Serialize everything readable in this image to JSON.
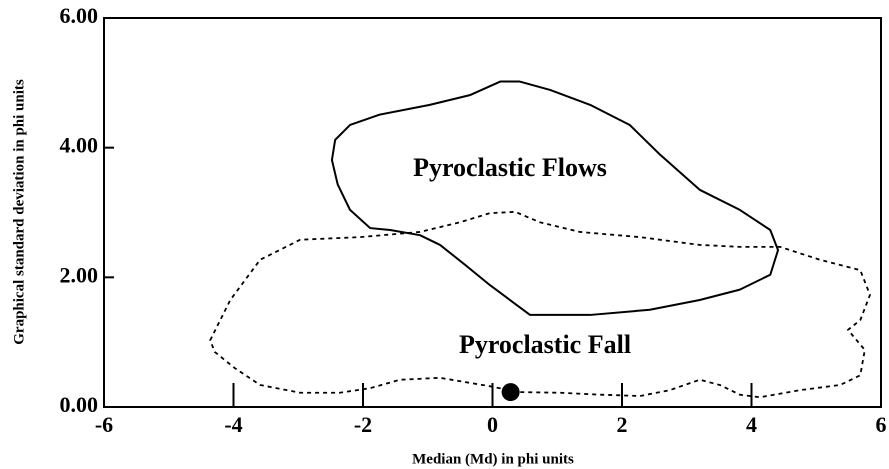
{
  "chart_data": {
    "type": "scatter",
    "xlabel": "Median (Md) in phi units",
    "ylabel": "Graphical standard deviation in phi units",
    "xlim": [
      -6,
      6
    ],
    "ylim": [
      0,
      6
    ],
    "xticks": [
      -6,
      -4,
      -2,
      0,
      2,
      4,
      6
    ],
    "yticks": [
      {
        "value": 0,
        "label": "0.00"
      },
      {
        "value": 2,
        "label": "2.00"
      },
      {
        "value": 4,
        "label": "4.00"
      },
      {
        "value": 6,
        "label": "6.00"
      }
    ],
    "color": "#000000",
    "regions": [
      {
        "name": "Pyroclastic Flows",
        "line": "solid",
        "x": [
          -2.43,
          -2.2,
          -1.74,
          -0.97,
          -0.35,
          0.12,
          0.42,
          0.89,
          1.51,
          2.12,
          2.59,
          3.2,
          3.82,
          4.29,
          4.41,
          4.29,
          3.82,
          3.2,
          2.43,
          1.51,
          0.58,
          0.27,
          -0.04,
          -0.42,
          -0.81,
          -1.12,
          -1.58,
          -1.89,
          -2.2,
          -2.39,
          -2.48
        ],
        "y": [
          4.12,
          4.35,
          4.51,
          4.66,
          4.81,
          5.02,
          5.02,
          4.89,
          4.66,
          4.35,
          3.89,
          3.35,
          3.04,
          2.73,
          2.42,
          2.04,
          1.81,
          1.65,
          1.5,
          1.42,
          1.42,
          1.65,
          1.88,
          2.19,
          2.5,
          2.65,
          2.73,
          2.76,
          3.04,
          3.43,
          3.81
        ]
      },
      {
        "name": "Pyroclastic Fall",
        "line": "dotted",
        "x": [
          -4.36,
          -4.05,
          -3.59,
          -2.97,
          -2.05,
          -1.12,
          -0.5,
          -0.04,
          0.35,
          0.73,
          1.35,
          2.28,
          3.2,
          3.82,
          4.44,
          5.06,
          5.68,
          5.83,
          5.68,
          5.49,
          5.75,
          5.68,
          5.37,
          4.75,
          4.13,
          3.82,
          3.51,
          3.2,
          2.74,
          2.28,
          1.66,
          1.04,
          0.42,
          -0.04,
          -0.81,
          -1.43,
          -1.89,
          -2.36,
          -2.97,
          -3.59,
          -3.98,
          -4.29
        ],
        "y": [
          1.03,
          1.65,
          2.27,
          2.58,
          2.62,
          2.7,
          2.85,
          2.99,
          3.01,
          2.85,
          2.7,
          2.62,
          2.5,
          2.47,
          2.47,
          2.27,
          2.11,
          1.73,
          1.34,
          1.19,
          0.88,
          0.49,
          0.34,
          0.26,
          0.15,
          0.19,
          0.34,
          0.42,
          0.26,
          0.17,
          0.19,
          0.22,
          0.23,
          0.32,
          0.45,
          0.42,
          0.29,
          0.22,
          0.22,
          0.34,
          0.6,
          0.85
        ]
      }
    ],
    "points": {
      "x": [
        0.28
      ],
      "y": [
        0.23
      ]
    }
  }
}
